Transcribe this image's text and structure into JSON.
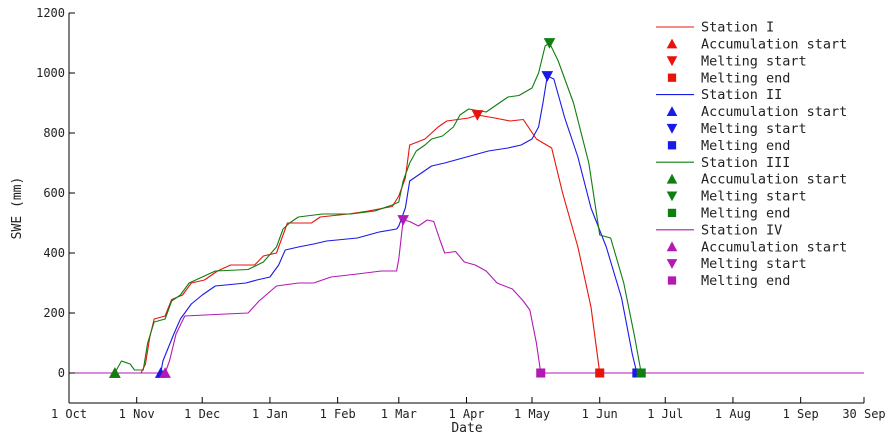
{
  "chart_data": {
    "type": "line",
    "title": "",
    "xlabel": "Date",
    "ylabel": "SWE (mm)",
    "x_tick_labels": [
      "1 Oct",
      "1 Nov",
      "1 Dec",
      "1 Jan",
      "1 Feb",
      "1 Mar",
      "1 Apr",
      "1 May",
      "1 Jun",
      "1 Jul",
      "1 Aug",
      "1 Sep",
      "30 Sep"
    ],
    "x_tick_dates": [
      "2000-10-01",
      "2000-11-01",
      "2000-12-01",
      "2001-01-01",
      "2001-02-01",
      "2001-03-01",
      "2001-04-01",
      "2001-05-01",
      "2001-06-01",
      "2001-07-01",
      "2001-08-01",
      "2001-09-01",
      "2001-09-30"
    ],
    "xlim": [
      "2000-10-01",
      "2001-09-30"
    ],
    "ylim": [
      -100,
      1200
    ],
    "y_ticks": [
      0,
      200,
      400,
      600,
      800,
      1000,
      1200
    ],
    "legend_position": "top-right",
    "grid": false,
    "series": [
      {
        "name": "Station I",
        "color": "#e8140c",
        "points": [
          [
            "2000-10-01",
            0
          ],
          [
            "2000-10-22",
            0
          ],
          [
            "2000-11-03",
            0
          ],
          [
            "2000-11-05",
            30
          ],
          [
            "2000-11-07",
            120
          ],
          [
            "2000-11-09",
            180
          ],
          [
            "2000-11-14",
            190
          ],
          [
            "2000-11-17",
            245
          ],
          [
            "2000-11-22",
            260
          ],
          [
            "2000-11-26",
            300
          ],
          [
            "2000-12-02",
            310
          ],
          [
            "2000-12-08",
            340
          ],
          [
            "2000-12-14",
            360
          ],
          [
            "2000-12-25",
            360
          ],
          [
            "2000-12-29",
            390
          ],
          [
            "2001-01-04",
            400
          ],
          [
            "2001-01-07",
            460
          ],
          [
            "2001-01-09",
            500
          ],
          [
            "2001-01-20",
            500
          ],
          [
            "2001-01-24",
            520
          ],
          [
            "2001-02-06",
            530
          ],
          [
            "2001-02-15",
            540
          ],
          [
            "2001-02-26",
            555
          ],
          [
            "2001-03-01",
            590
          ],
          [
            "2001-03-04",
            650
          ],
          [
            "2001-03-06",
            760
          ],
          [
            "2001-03-13",
            780
          ],
          [
            "2001-03-16",
            800
          ],
          [
            "2001-03-19",
            820
          ],
          [
            "2001-03-23",
            840
          ],
          [
            "2001-04-02",
            850
          ],
          [
            "2001-04-06",
            860
          ],
          [
            "2001-04-14",
            850
          ],
          [
            "2001-04-21",
            840
          ],
          [
            "2001-04-27",
            845
          ],
          [
            "2001-05-03",
            780
          ],
          [
            "2001-05-10",
            750
          ],
          [
            "2001-05-15",
            600
          ],
          [
            "2001-05-22",
            420
          ],
          [
            "2001-05-28",
            220
          ],
          [
            "2001-06-01",
            0
          ],
          [
            "2001-09-30",
            0
          ]
        ],
        "markers": {
          "Accumulation start": [
            "2000-10-22",
            0
          ],
          "Melting start": [
            "2001-04-06",
            860
          ],
          "Melting end": [
            "2001-06-01",
            0
          ]
        }
      },
      {
        "name": "Station II",
        "color": "#1a1ae6",
        "points": [
          [
            "2000-10-01",
            0
          ],
          [
            "2000-11-12",
            0
          ],
          [
            "2000-11-13",
            40
          ],
          [
            "2000-11-18",
            130
          ],
          [
            "2000-11-21",
            180
          ],
          [
            "2000-11-26",
            230
          ],
          [
            "2000-12-01",
            260
          ],
          [
            "2000-12-07",
            290
          ],
          [
            "2000-12-21",
            300
          ],
          [
            "2000-12-26",
            310
          ],
          [
            "2001-01-01",
            320
          ],
          [
            "2001-01-05",
            360
          ],
          [
            "2001-01-08",
            410
          ],
          [
            "2001-01-14",
            420
          ],
          [
            "2001-01-21",
            430
          ],
          [
            "2001-01-27",
            440
          ],
          [
            "2001-02-10",
            450
          ],
          [
            "2001-02-20",
            470
          ],
          [
            "2001-02-28",
            480
          ],
          [
            "2001-03-01",
            490
          ],
          [
            "2001-03-04",
            550
          ],
          [
            "2001-03-06",
            640
          ],
          [
            "2001-03-10",
            660
          ],
          [
            "2001-03-16",
            690
          ],
          [
            "2001-03-22",
            700
          ],
          [
            "2001-04-01",
            720
          ],
          [
            "2001-04-11",
            740
          ],
          [
            "2001-04-20",
            750
          ],
          [
            "2001-04-26",
            760
          ],
          [
            "2001-05-01",
            780
          ],
          [
            "2001-05-04",
            820
          ],
          [
            "2001-05-06",
            900
          ],
          [
            "2001-05-08",
            990
          ],
          [
            "2001-05-11",
            980
          ],
          [
            "2001-05-16",
            850
          ],
          [
            "2001-05-22",
            720
          ],
          [
            "2001-05-28",
            550
          ],
          [
            "2001-06-04",
            420
          ],
          [
            "2001-06-11",
            250
          ],
          [
            "2001-06-16",
            60
          ],
          [
            "2001-06-18",
            0
          ],
          [
            "2001-09-30",
            0
          ]
        ],
        "markers": {
          "Accumulation start": [
            "2000-11-12",
            0
          ],
          "Melting start": [
            "2001-05-08",
            990
          ],
          "Melting end": [
            "2001-06-18",
            0
          ]
        }
      },
      {
        "name": "Station III",
        "color": "#107d10",
        "points": [
          [
            "2000-10-01",
            0
          ],
          [
            "2000-10-22",
            0
          ],
          [
            "2000-10-25",
            40
          ],
          [
            "2000-10-29",
            30
          ],
          [
            "2000-10-31",
            10
          ],
          [
            "2000-11-04",
            10
          ],
          [
            "2000-11-06",
            100
          ],
          [
            "2000-11-09",
            170
          ],
          [
            "2000-11-14",
            180
          ],
          [
            "2000-11-17",
            240
          ],
          [
            "2000-11-21",
            260
          ],
          [
            "2000-11-25",
            300
          ],
          [
            "2000-12-01",
            320
          ],
          [
            "2000-12-07",
            340
          ],
          [
            "2000-12-22",
            345
          ],
          [
            "2000-12-29",
            370
          ],
          [
            "2001-01-04",
            420
          ],
          [
            "2001-01-07",
            480
          ],
          [
            "2001-01-10",
            500
          ],
          [
            "2001-01-14",
            520
          ],
          [
            "2001-01-25",
            530
          ],
          [
            "2001-02-07",
            530
          ],
          [
            "2001-02-18",
            540
          ],
          [
            "2001-02-26",
            560
          ],
          [
            "2001-03-01",
            570
          ],
          [
            "2001-03-03",
            640
          ],
          [
            "2001-03-06",
            700
          ],
          [
            "2001-03-09",
            740
          ],
          [
            "2001-03-13",
            760
          ],
          [
            "2001-03-16",
            780
          ],
          [
            "2001-03-21",
            790
          ],
          [
            "2001-03-26",
            820
          ],
          [
            "2001-03-29",
            860
          ],
          [
            "2001-04-02",
            880
          ],
          [
            "2001-04-10",
            870
          ],
          [
            "2001-04-16",
            900
          ],
          [
            "2001-04-20",
            920
          ],
          [
            "2001-04-25",
            925
          ],
          [
            "2001-05-01",
            950
          ],
          [
            "2001-05-04",
            1000
          ],
          [
            "2001-05-07",
            1090
          ],
          [
            "2001-05-09",
            1100
          ],
          [
            "2001-05-13",
            1040
          ],
          [
            "2001-05-20",
            900
          ],
          [
            "2001-05-27",
            700
          ],
          [
            "2001-06-01",
            460
          ],
          [
            "2001-06-06",
            450
          ],
          [
            "2001-06-12",
            300
          ],
          [
            "2001-06-17",
            120
          ],
          [
            "2001-06-20",
            0
          ],
          [
            "2001-09-30",
            0
          ]
        ],
        "markers": {
          "Accumulation start": [
            "2000-10-22",
            0
          ],
          "Melting start": [
            "2001-05-09",
            1100
          ],
          "Melting end": [
            "2001-06-20",
            0
          ]
        }
      },
      {
        "name": "Station IV",
        "color": "#b31ab3",
        "points": [
          [
            "2000-10-01",
            0
          ],
          [
            "2000-11-14",
            0
          ],
          [
            "2000-11-16",
            40
          ],
          [
            "2000-11-19",
            130
          ],
          [
            "2000-11-23",
            190
          ],
          [
            "2000-12-07",
            195
          ],
          [
            "2000-12-22",
            200
          ],
          [
            "2000-12-27",
            240
          ],
          [
            "2001-01-04",
            290
          ],
          [
            "2001-01-14",
            300
          ],
          [
            "2001-01-21",
            300
          ],
          [
            "2001-01-29",
            320
          ],
          [
            "2001-02-10",
            330
          ],
          [
            "2001-02-21",
            340
          ],
          [
            "2001-02-28",
            340
          ],
          [
            "2001-03-01",
            380
          ],
          [
            "2001-03-03",
            510
          ],
          [
            "2001-03-06",
            505
          ],
          [
            "2001-03-10",
            490
          ],
          [
            "2001-03-14",
            510
          ],
          [
            "2001-03-17",
            505
          ],
          [
            "2001-03-20",
            440
          ],
          [
            "2001-03-22",
            400
          ],
          [
            "2001-03-27",
            405
          ],
          [
            "2001-03-31",
            370
          ],
          [
            "2001-04-05",
            360
          ],
          [
            "2001-04-10",
            340
          ],
          [
            "2001-04-15",
            300
          ],
          [
            "2001-04-22",
            280
          ],
          [
            "2001-04-27",
            240
          ],
          [
            "2001-04-30",
            210
          ],
          [
            "2001-05-03",
            100
          ],
          [
            "2001-05-05",
            0
          ],
          [
            "2001-09-30",
            0
          ]
        ],
        "markers": {
          "Accumulation start": [
            "2000-11-14",
            0
          ],
          "Melting start": [
            "2001-03-03",
            510
          ],
          "Melting end": [
            "2001-05-05",
            0
          ]
        }
      }
    ],
    "legend": [
      {
        "label": "Station I",
        "type": "line",
        "series": 0
      },
      {
        "label": "Accumulation start",
        "type": "marker",
        "marker": "triangle-up",
        "series": 0
      },
      {
        "label": "Melting start",
        "type": "marker",
        "marker": "triangle-down",
        "series": 0
      },
      {
        "label": "Melting end",
        "type": "marker",
        "marker": "square",
        "series": 0
      },
      {
        "label": "Station II",
        "type": "line",
        "series": 1
      },
      {
        "label": "Accumulation start",
        "type": "marker",
        "marker": "triangle-up",
        "series": 1
      },
      {
        "label": "Melting start",
        "type": "marker",
        "marker": "triangle-down",
        "series": 1
      },
      {
        "label": "Melting end",
        "type": "marker",
        "marker": "square",
        "series": 1
      },
      {
        "label": "Station III",
        "type": "line",
        "series": 2
      },
      {
        "label": "Accumulation start",
        "type": "marker",
        "marker": "triangle-up",
        "series": 2
      },
      {
        "label": "Melting start",
        "type": "marker",
        "marker": "triangle-down",
        "series": 2
      },
      {
        "label": "Melting end",
        "type": "marker",
        "marker": "square",
        "series": 2
      },
      {
        "label": "Station IV",
        "type": "line",
        "series": 3
      },
      {
        "label": "Accumulation start",
        "type": "marker",
        "marker": "triangle-up",
        "series": 3
      },
      {
        "label": "Melting start",
        "type": "marker",
        "marker": "triangle-down",
        "series": 3
      },
      {
        "label": "Melting end",
        "type": "marker",
        "marker": "square",
        "series": 3
      }
    ]
  }
}
